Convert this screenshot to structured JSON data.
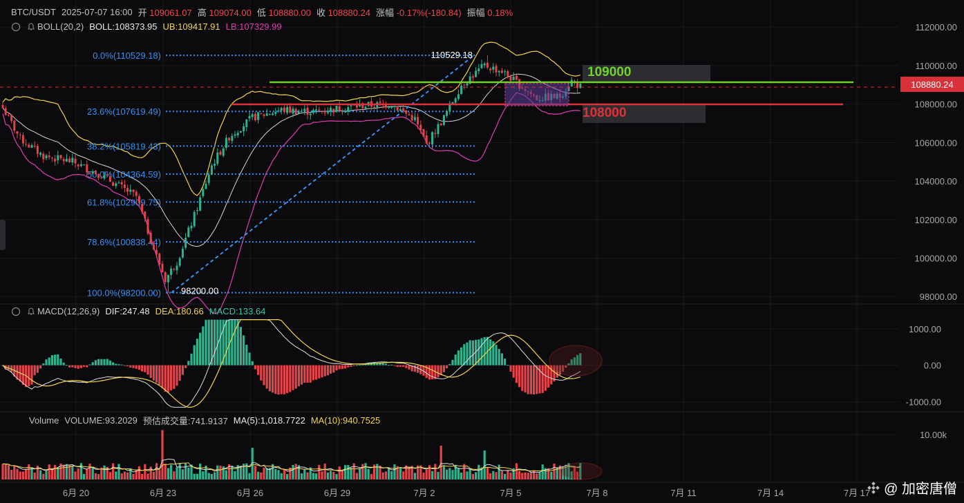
{
  "header": {
    "symbol": "BTC/USDT",
    "datetime": "2025-07-07 16:00",
    "open_label": "开",
    "open": "109061.07",
    "high_label": "高",
    "high": "109074.00",
    "low_label": "低",
    "low": "108880.00",
    "close_label": "收",
    "close": "108880.24",
    "change_label": "涨幅",
    "change": "-0.17%(-180.84)",
    "amp_label": "振幅",
    "amp": "0.18%"
  },
  "boll": {
    "name": "BOLL(20,2)",
    "mid": "BOLL:108373.95",
    "ub": "UB:109417.91",
    "lb": "LB:107329.99"
  },
  "macd": {
    "name": "MACD(12,26,9)",
    "dif": "DIF:247.48",
    "dea": "DEA:180.66",
    "macd": "MACD:133.64"
  },
  "volume": {
    "name": "Volume",
    "vol": "VOLUME:93.2029",
    "est": "预估成交量:741.9137",
    "ma5": "MA(5):1,018.7722",
    "ma10": "MA(10):940.7525"
  },
  "price_badge": "108880.24",
  "levels": {
    "upper": "109000",
    "lower": "108000"
  },
  "watermark": "@ 加密唐僧",
  "colors": {
    "up": "#2fb38f",
    "down": "#e2444a",
    "ub": "#f3d44a",
    "lb": "#e03fb0",
    "mid": "#d6d6d6",
    "fib": "#3a8ff0",
    "green_line": "#6fd12a",
    "red_line": "#e0303a"
  },
  "chart_data": [
    {
      "type": "line",
      "title": "",
      "price_axis": {
        "ticks": [
          "112000.00",
          "110000.00",
          "108000.00",
          "106000.00",
          "104000.00",
          "102000.00",
          "100000.00",
          "98000.00"
        ],
        "ylim": [
          97900,
          112400
        ]
      },
      "x_ticks": [
        "6月 20",
        "6月 23",
        "6月 26",
        "6月 29",
        "7月 2",
        "7月 5",
        "7月 8",
        "7月 11",
        "7月 14",
        "7月 17"
      ],
      "fib_levels": [
        {
          "label": "0.0%(110529.18)",
          "value": 110529.18
        },
        {
          "label": "23.6%(107619.49)",
          "value": 107619.49
        },
        {
          "label": "38.2%(105819.43)",
          "value": 105819.43
        },
        {
          "label": "50.0%(104364.59)",
          "value": 104364.59
        },
        {
          "label": "61.8%(102909.75)",
          "value": 102909.75
        },
        {
          "label": "78.6%(100838.44)",
          "value": 100838.44
        },
        {
          "label": "100.0%(98200.00)",
          "value": 98200.0
        }
      ],
      "annotations": [
        {
          "text": "110529.18",
          "value": 110529.18
        },
        {
          "text": "98200.00",
          "value": 98200.0
        }
      ],
      "last_price": 108880.24
    },
    {
      "type": "bar",
      "title": "",
      "axis_ticks": [
        "1000.00",
        "0.00",
        "-1000.00"
      ],
      "ylim": [
        -1200,
        1300
      ]
    },
    {
      "type": "bar",
      "title": "",
      "axis_ticks": [
        "10.00k"
      ],
      "ylim": [
        0,
        12000
      ]
    }
  ]
}
